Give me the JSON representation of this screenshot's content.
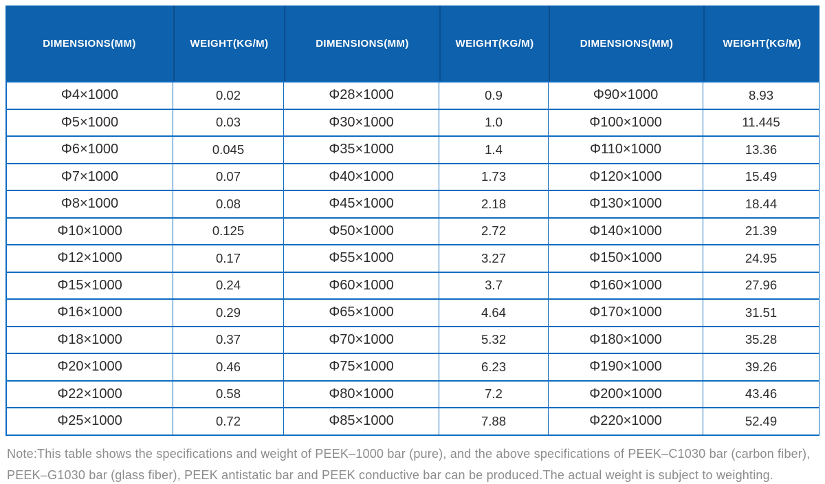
{
  "table": {
    "header": {
      "columns": [
        "DIMENSIONS(MM)",
        "WEIGHT(KG/M)",
        "DIMENSIONS(MM)",
        "WEIGHT(KG/M)",
        "DIMENSIONS(MM)",
        "WEIGHT(KG/M)"
      ]
    },
    "rows": [
      [
        "Φ4×1000",
        "0.02",
        "Φ28×1000",
        "0.9",
        "Φ90×1000",
        "8.93"
      ],
      [
        "Φ5×1000",
        "0.03",
        "Φ30×1000",
        "1.0",
        "Φ100×1000",
        "11.445"
      ],
      [
        "Φ6×1000",
        "0.045",
        "Φ35×1000",
        "1.4",
        "Φ110×1000",
        "13.36"
      ],
      [
        "Φ7×1000",
        "0.07",
        "Φ40×1000",
        "1.73",
        "Φ120×1000",
        "15.49"
      ],
      [
        "Φ8×1000",
        "0.08",
        "Φ45×1000",
        "2.18",
        "Φ130×1000",
        "18.44"
      ],
      [
        "Φ10×1000",
        "0.125",
        "Φ50×1000",
        "2.72",
        "Φ140×1000",
        "21.39"
      ],
      [
        "Φ12×1000",
        "0.17",
        "Φ55×1000",
        "3.27",
        "Φ150×1000",
        "24.95"
      ],
      [
        "Φ15×1000",
        "0.24",
        "Φ60×1000",
        "3.7",
        "Φ160×1000",
        "27.96"
      ],
      [
        "Φ16×1000",
        "0.29",
        "Φ65×1000",
        "4.64",
        "Φ170×1000",
        "31.51"
      ],
      [
        "Φ18×1000",
        "0.37",
        "Φ70×1000",
        "5.32",
        "Φ180×1000",
        "35.28"
      ],
      [
        "Φ20×1000",
        "0.46",
        "Φ75×1000",
        "6.23",
        "Φ190×1000",
        "39.26"
      ],
      [
        "Φ22×1000",
        "0.58",
        "Φ80×1000",
        "7.2",
        "Φ200×1000",
        "43.46"
      ],
      [
        "Φ25×1000",
        "0.72",
        "Φ85×1000",
        "7.88",
        "Φ220×1000",
        "52.49"
      ]
    ]
  },
  "note": {
    "text": "Note:This table shows the specifications and weight of PEEK–1000 bar (pure), and the above specifications of PEEK–C1030 bar (carbon fiber), PEEK–G1030 bar (glass fiber), PEEK antistatic bar and PEEK conductive bar can be produced.The actual weight is subject to weighting."
  },
  "colors": {
    "header_bg": "#0E61AC",
    "header_divider": "#0B4D8C",
    "header_text": "#FFFFFF",
    "grid_border": "#0D6CC0",
    "cell_text": "#2D2D2D",
    "note_text": "#8C8C8C"
  }
}
